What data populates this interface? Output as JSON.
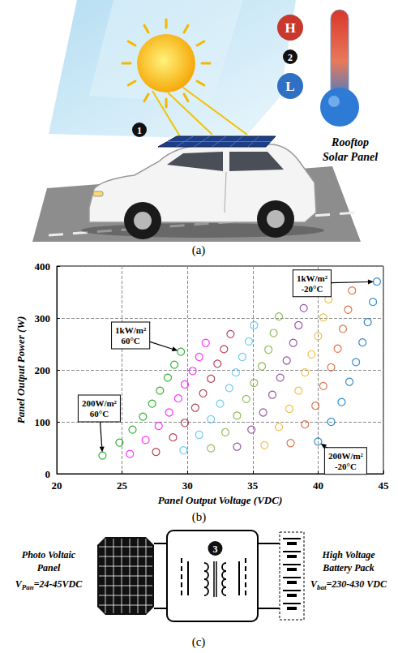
{
  "panels": {
    "a": {
      "label": "(a)",
      "badges": [
        "1",
        "2"
      ],
      "hot": "H",
      "cold": "L",
      "caption": "Rooftop Solar Panel"
    },
    "b": {
      "label": "(b)"
    },
    "c": {
      "label": "(c)",
      "badge": "3",
      "source": {
        "name": "Photo Voltaic Panel",
        "voltage": {
          "symbol": "V",
          "subscript": "Pan",
          "text": "=24-45VDC"
        }
      },
      "load": {
        "name": "High Voltage Battery Pack",
        "voltage": {
          "symbol": "V",
          "subscript": "bat",
          "text": "=230-430 VDC"
        }
      }
    }
  },
  "chart_data": {
    "type": "scatter",
    "xlabel": "Panel Output Voltage (VDC)",
    "ylabel": "Panel Output Power (W)",
    "xlim": [
      20,
      45
    ],
    "ylim": [
      0,
      400
    ],
    "xticks": [
      20,
      25,
      30,
      35,
      40,
      45
    ],
    "yticks": [
      0,
      100,
      200,
      300,
      400
    ],
    "grid": true,
    "marker": "circle-open",
    "annotations": [
      {
        "lines": [
          "1kW/m²",
          "-20°C"
        ],
        "x": 44.5,
        "y": 370
      },
      {
        "lines": [
          "1kW/m²",
          "60°C"
        ],
        "x": 29.5,
        "y": 235
      },
      {
        "lines": [
          "200W/m²",
          "60°C"
        ],
        "x": 23.5,
        "y": 35
      },
      {
        "lines": [
          "200W/m²",
          "-20°C"
        ],
        "x": 40.0,
        "y": 62
      }
    ],
    "series": [
      {
        "color": "#0072bd",
        "x": [
          40.0,
          41.0,
          41.8,
          42.4,
          42.9,
          43.4,
          43.8,
          44.2,
          44.5
        ],
        "values": [
          62,
          100,
          138,
          177,
          215,
          253,
          292,
          331,
          370
        ]
      },
      {
        "color": "#d95319",
        "x": [
          37.9,
          39.0,
          39.8,
          40.4,
          41.0,
          41.5,
          41.9,
          42.3,
          42.6
        ],
        "values": [
          59,
          95,
          131,
          169,
          205,
          241,
          279,
          316,
          353
        ]
      },
      {
        "color": "#edb120",
        "x": [
          35.9,
          37.0,
          37.8,
          38.5,
          39.0,
          39.5,
          40.0,
          40.4,
          40.8
        ],
        "values": [
          55,
          90,
          125,
          160,
          195,
          230,
          265,
          301,
          336
        ]
      },
      {
        "color": "#7e2f8e",
        "x": [
          33.8,
          34.9,
          35.8,
          36.5,
          37.1,
          37.6,
          38.1,
          38.5,
          38.9
        ],
        "values": [
          52,
          85,
          118,
          152,
          185,
          218,
          252,
          286,
          319
        ]
      },
      {
        "color": "#77ac30",
        "x": [
          31.8,
          32.9,
          33.8,
          34.5,
          35.1,
          35.7,
          36.2,
          36.6,
          37.0
        ],
        "values": [
          49,
          80,
          112,
          144,
          175,
          207,
          239,
          271,
          303
        ]
      },
      {
        "color": "#4dbeee",
        "x": [
          29.7,
          30.9,
          31.8,
          32.5,
          33.2,
          33.7,
          34.2,
          34.7,
          35.1
        ],
        "values": [
          45,
          75,
          105,
          135,
          165,
          195,
          225,
          255,
          286
        ]
      },
      {
        "color": "#a2142f",
        "x": [
          27.6,
          28.9,
          29.8,
          30.6,
          31.2,
          31.8,
          32.3,
          32.8,
          33.3
        ],
        "values": [
          42,
          70,
          98,
          127,
          155,
          183,
          212,
          240,
          269
        ]
      },
      {
        "color": "#ff00ff",
        "x": [
          25.6,
          26.8,
          27.8,
          28.6,
          29.3,
          29.8,
          30.4,
          30.9,
          31.4
        ],
        "values": [
          38,
          65,
          92,
          118,
          145,
          172,
          198,
          225,
          252
        ]
      },
      {
        "color": "#00a000",
        "x": [
          23.5,
          24.8,
          25.8,
          26.6,
          27.3,
          27.9,
          28.5,
          29.0,
          29.5
        ],
        "values": [
          35,
          60,
          85,
          110,
          135,
          160,
          185,
          210,
          235
        ]
      }
    ]
  }
}
